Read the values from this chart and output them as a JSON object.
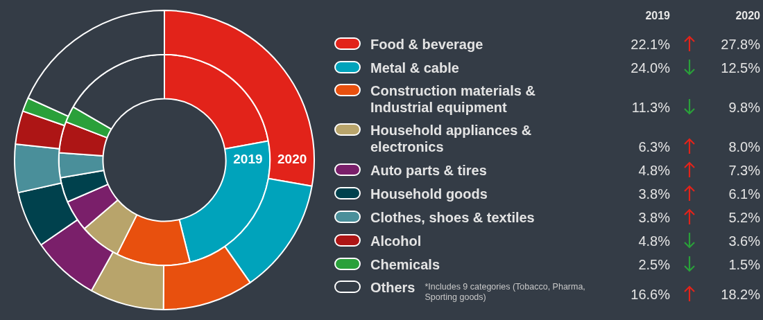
{
  "chart_data": {
    "type": "donut",
    "categories": [
      "Food & beverage",
      "Metal & cable",
      "Construction materials & Industrial equipment",
      "Household appliances & electronics",
      "Auto parts & tires",
      "Household goods",
      "Clothes, shoes & textiles",
      "Alcohol",
      "Chemicals",
      "Others"
    ],
    "colors": [
      "#e2231a",
      "#00a3bb",
      "#e8500e",
      "#b8a46b",
      "#7a1f6a",
      "#00414d",
      "#4a8f9a",
      "#ad1515",
      "#2aa03a",
      "#343c46"
    ],
    "series": [
      {
        "name": "2019",
        "values": [
          22.1,
          24.0,
          11.3,
          6.3,
          4.8,
          3.8,
          3.8,
          4.8,
          2.5,
          16.6
        ],
        "value_labels": [
          "22.1%",
          "24.0%",
          "11.3%",
          "6.3%",
          "4.8%",
          "3.8%",
          "3.8%",
          "4.8%",
          "2.5%",
          "16.6%"
        ]
      },
      {
        "name": "2020",
        "values": [
          27.8,
          12.5,
          9.8,
          8.0,
          7.3,
          6.1,
          5.2,
          3.6,
          1.5,
          18.2
        ],
        "value_labels": [
          "27.8%",
          "12.5%",
          "9.8%",
          "8.0%",
          "7.3%",
          "6.1%",
          "5.2%",
          "3.6%",
          "1.5%",
          "18.2%"
        ]
      }
    ],
    "legend": "right",
    "annotations": [
      "*Includes 9 categories (Tobacco, Pharma, Sporting goods)"
    ]
  }
}
